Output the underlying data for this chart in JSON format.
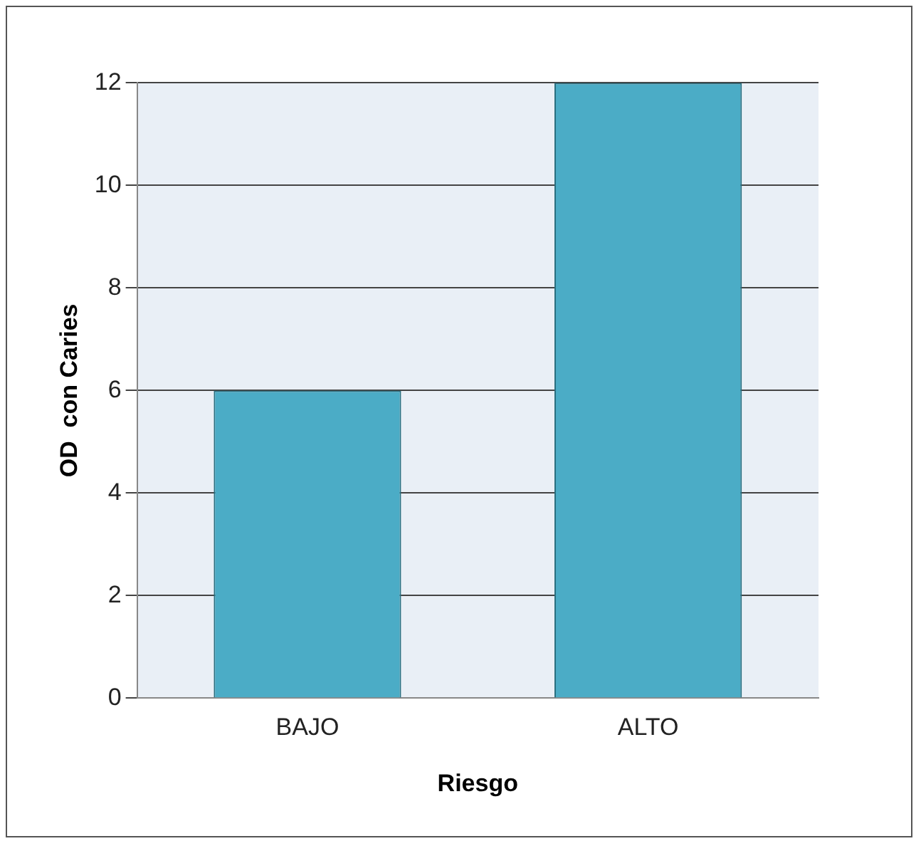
{
  "chart_data": {
    "type": "bar",
    "xlabel": "Riesgo",
    "ylabel": "OD  con Caries",
    "categories": [
      "BAJO",
      "ALTO"
    ],
    "values": [
      6,
      12
    ],
    "color": "#4bacc6",
    "ylim": [
      0,
      12
    ],
    "yticks": [
      0,
      2,
      4,
      6,
      8,
      10,
      12
    ],
    "grid": "y"
  }
}
